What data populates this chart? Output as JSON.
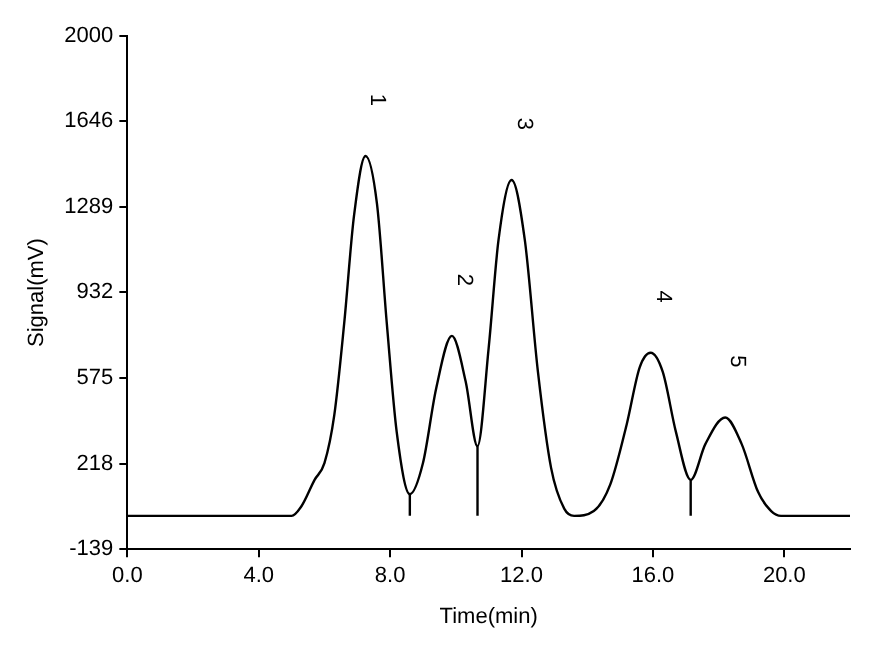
{
  "chart_data": {
    "type": "line",
    "xlabel": "Time(min)",
    "ylabel": "Signal(mV)",
    "xlim": [
      0,
      22
    ],
    "ylim": [
      -139,
      2000
    ],
    "xticks": [
      {
        "value": 0,
        "label": "0.0"
      },
      {
        "value": 4,
        "label": "4.0"
      },
      {
        "value": 8,
        "label": "8.0"
      },
      {
        "value": 12,
        "label": "12.0"
      },
      {
        "value": 16,
        "label": "16.0"
      },
      {
        "value": 20,
        "label": "20.0"
      }
    ],
    "yticks": [
      -139,
      218,
      575,
      932,
      1289,
      1646,
      2000
    ],
    "grid": false,
    "legend": false,
    "marker": "none",
    "series": [
      {
        "color": "#000000",
        "x": [
          0,
          5.0,
          5.3,
          5.7,
          6.0,
          6.3,
          6.6,
          6.9,
          7.25,
          7.6,
          7.9,
          8.2,
          8.6,
          9.0,
          9.4,
          9.88,
          10.3,
          10.66,
          11.0,
          11.3,
          11.7,
          12.1,
          12.5,
          12.9,
          13.3,
          13.6,
          14.2,
          14.7,
          15.2,
          15.6,
          15.93,
          16.3,
          16.7,
          17.15,
          17.6,
          18.2,
          18.7,
          19.2,
          19.6,
          19.9,
          22
        ],
        "values": [
          0,
          0,
          40,
          150,
          220,
          420,
          800,
          1250,
          1500,
          1300,
          800,
          350,
          90,
          220,
          530,
          750,
          560,
          290,
          700,
          1150,
          1400,
          1150,
          600,
          200,
          30,
          0,
          20,
          130,
          380,
          620,
          680,
          600,
          350,
          150,
          300,
          410,
          300,
          100,
          20,
          0,
          0
        ]
      },
      {
        "color": "#000000",
        "x": [
          8.6,
          8.6
        ],
        "values": [
          0,
          90
        ]
      },
      {
        "color": "#000000",
        "x": [
          10.66,
          10.66
        ],
        "values": [
          0,
          290
        ]
      },
      {
        "color": "#000000",
        "x": [
          17.15,
          17.15
        ],
        "values": [
          0,
          150
        ]
      }
    ],
    "annotations": [
      {
        "text": "1",
        "x": 7.25,
        "y": 1500
      },
      {
        "text": "2",
        "x": 9.88,
        "y": 750
      },
      {
        "text": "3",
        "x": 11.7,
        "y": 1400
      },
      {
        "text": "4",
        "x": 15.93,
        "y": 680
      },
      {
        "text": "5",
        "x": 18.2,
        "y": 410
      }
    ]
  }
}
